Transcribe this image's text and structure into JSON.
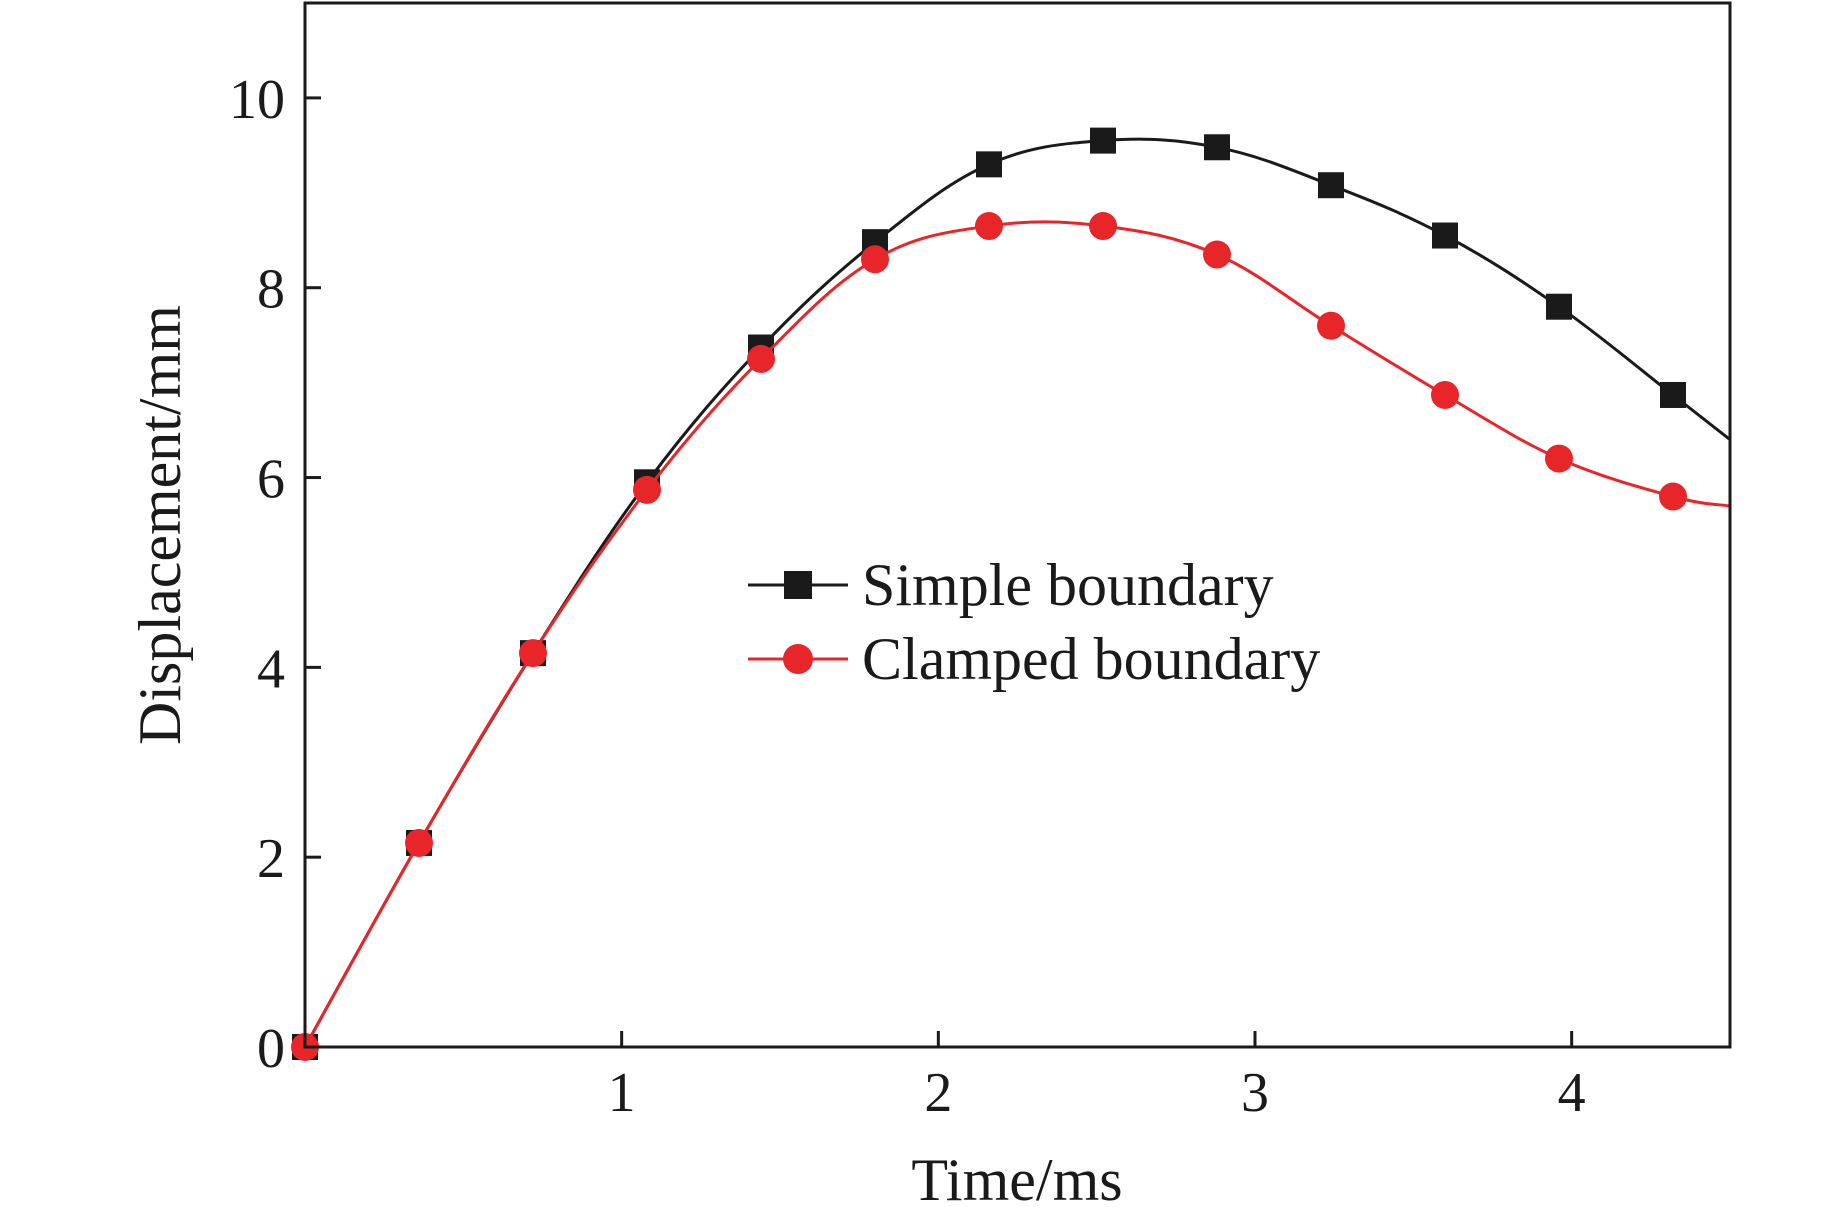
{
  "chart_data": {
    "type": "line",
    "title": "",
    "xlabel": "Time/ms",
    "ylabel": "Displacement/mm",
    "xlim": [
      0,
      4.5
    ],
    "ylim": [
      0,
      11
    ],
    "xticks": [
      1,
      2,
      3,
      4
    ],
    "xtick_labels": [
      "1",
      "2",
      "3",
      "4"
    ],
    "yticks": [
      0,
      2,
      4,
      6,
      8,
      10
    ],
    "ytick_labels": [
      "0",
      "2",
      "4",
      "6",
      "8",
      "10"
    ],
    "grid": false,
    "legend_position": "center",
    "series": [
      {
        "name": "Simple boundary",
        "color": "#1a1a1a",
        "marker": "square",
        "x": [
          0,
          0.36,
          0.72,
          1.08,
          1.44,
          1.8,
          2.16,
          2.52,
          2.88,
          3.24,
          3.6,
          3.96,
          4.32
        ],
        "y": [
          0.0,
          2.15,
          4.15,
          5.95,
          7.37,
          8.48,
          9.3,
          9.55,
          9.48,
          9.08,
          8.55,
          7.8,
          6.87
        ],
        "line_end": {
          "x": 4.5,
          "y": 6.4
        }
      },
      {
        "name": "Clamped boundary",
        "color": "#e8262a",
        "marker": "circle",
        "x": [
          0,
          0.36,
          0.72,
          1.08,
          1.44,
          1.8,
          2.16,
          2.52,
          2.88,
          3.24,
          3.6,
          3.96,
          4.32
        ],
        "y": [
          0.0,
          2.15,
          4.15,
          5.87,
          7.25,
          8.3,
          8.65,
          8.65,
          8.35,
          7.6,
          6.87,
          6.2,
          5.8
        ],
        "line_end": {
          "x": 4.5,
          "y": 5.7
        }
      }
    ]
  }
}
